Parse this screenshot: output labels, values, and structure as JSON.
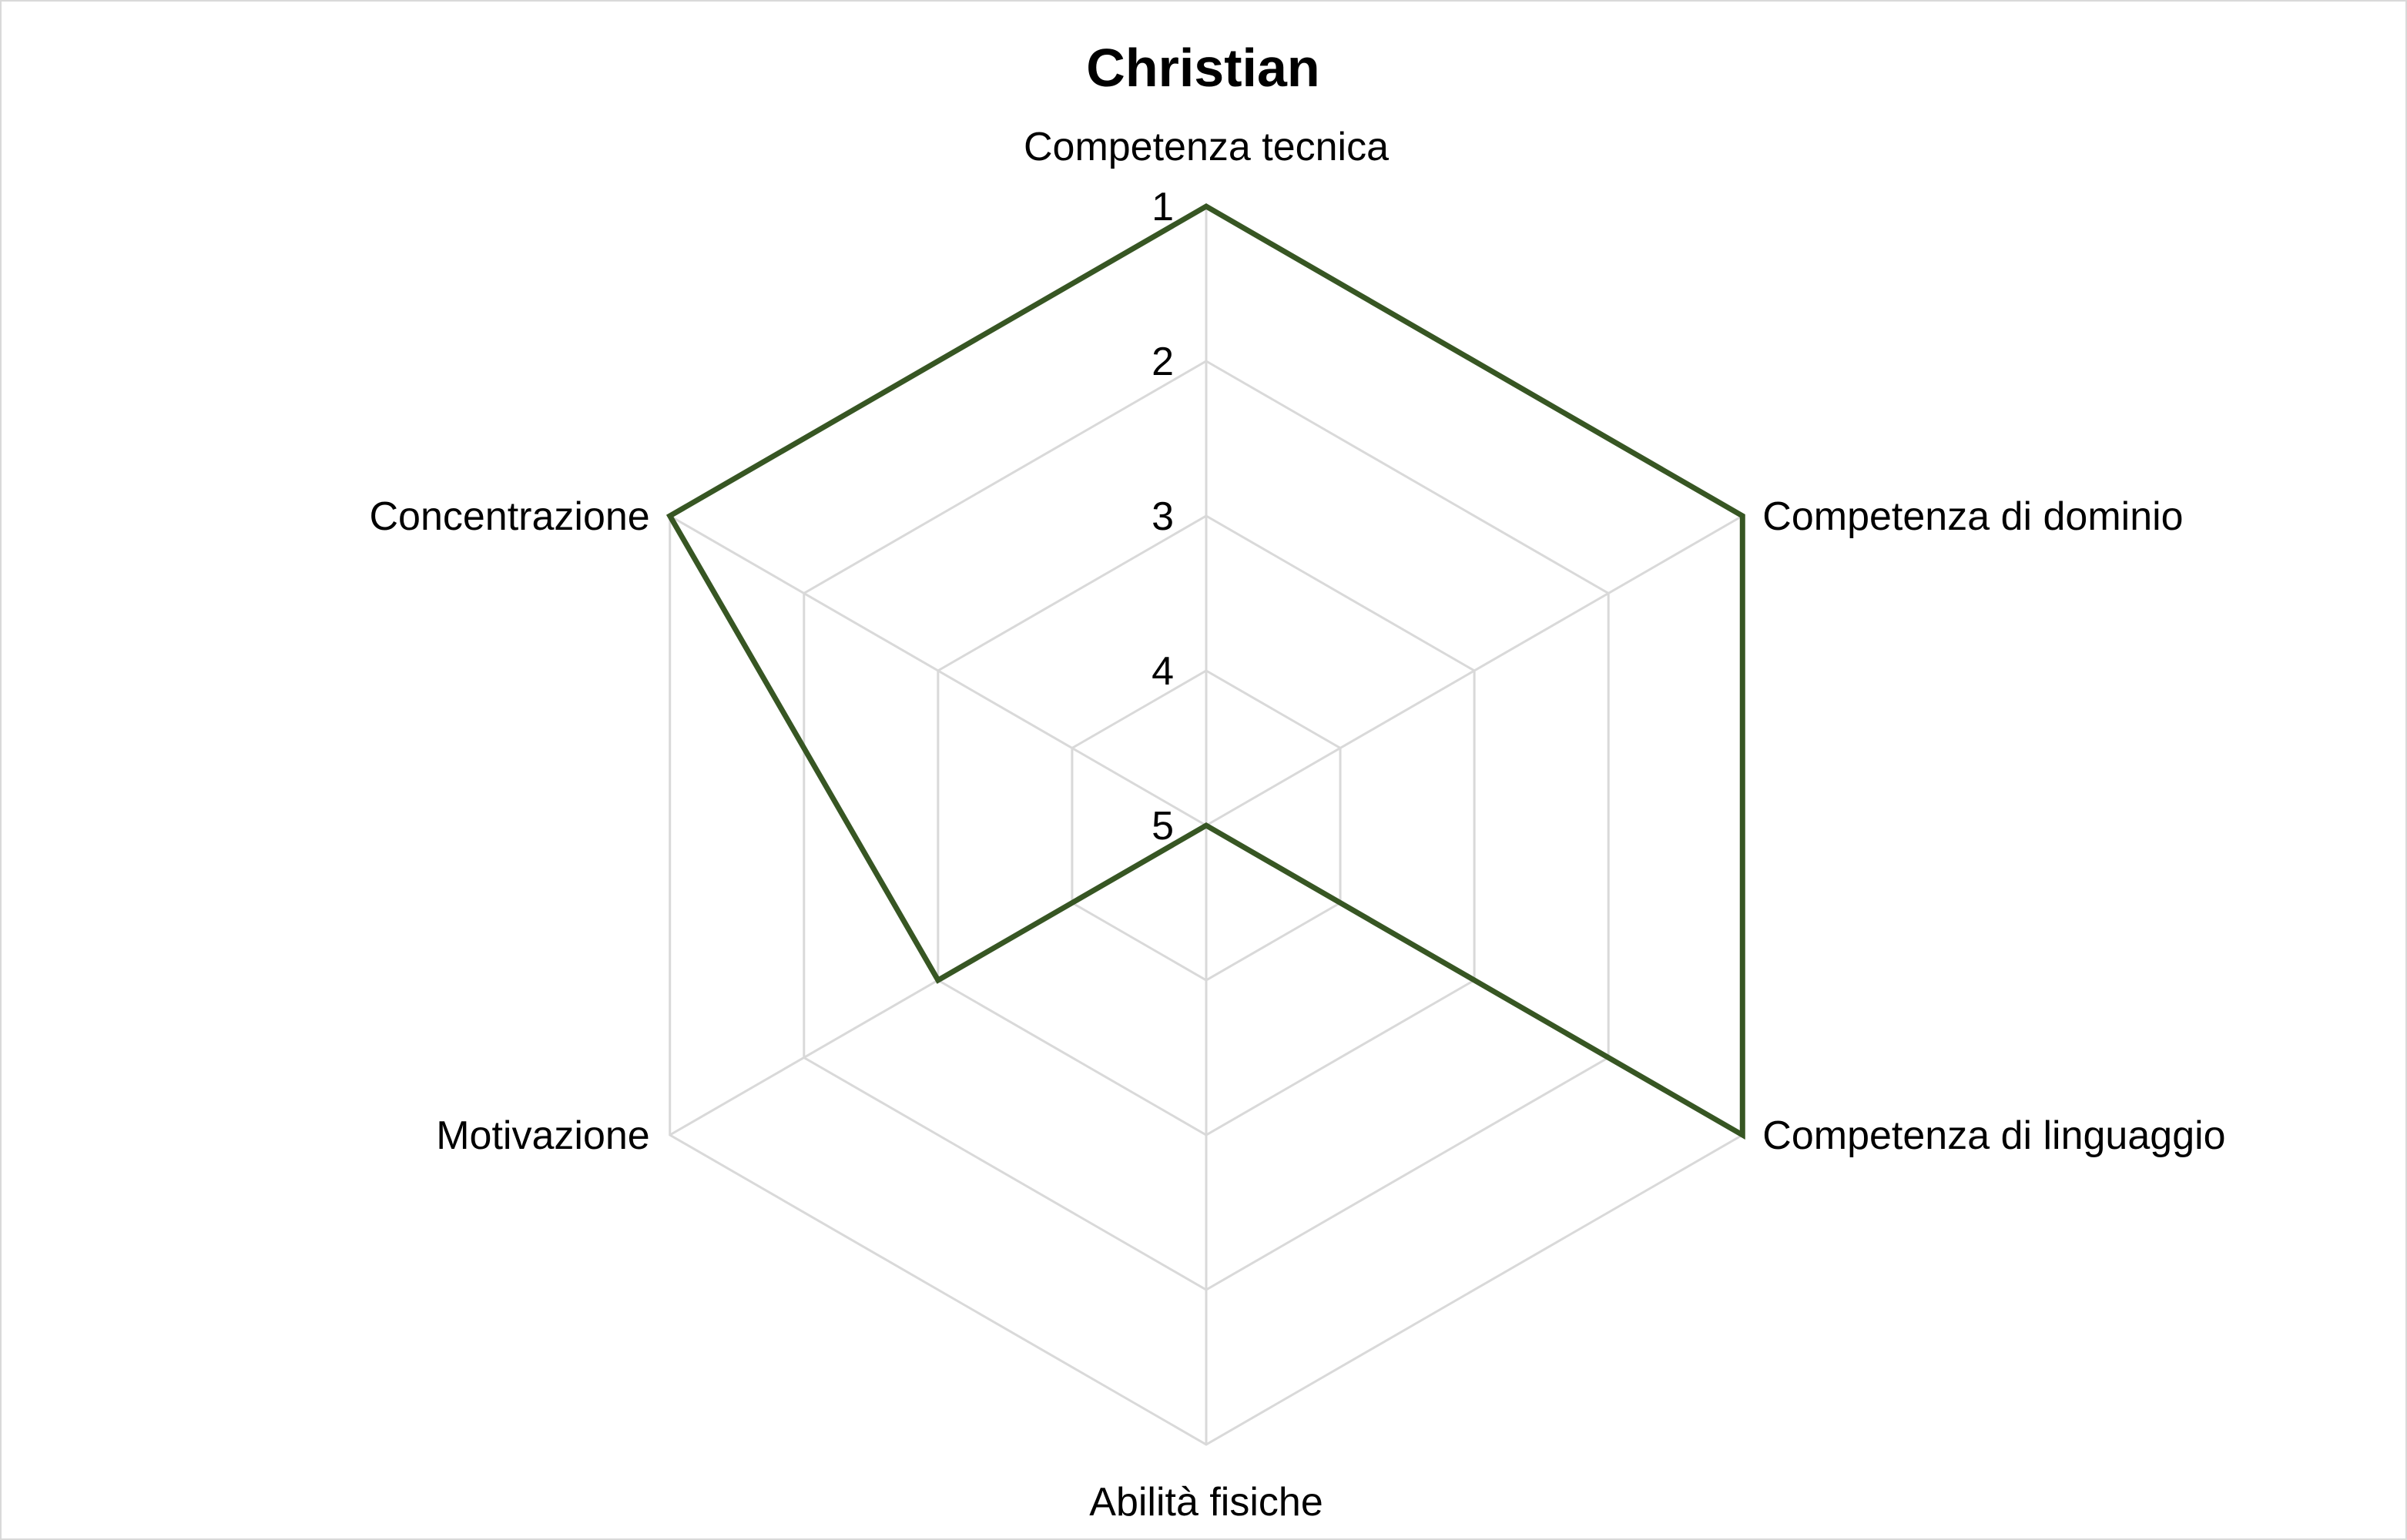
{
  "chart_data": {
    "type": "radar",
    "title": "Christian",
    "categories": [
      "Competenza tecnica",
      "Competenza di dominio",
      "Competenza di linguaggio",
      "Abilità fisiche",
      "Motivazione",
      "Concentrazione"
    ],
    "axis": {
      "min": 1,
      "max": 5,
      "reversed": true,
      "ticks": [
        "1",
        "2",
        "3",
        "4",
        "5"
      ]
    },
    "grid": true,
    "legend": "none",
    "series": [
      {
        "values": [
          1,
          1,
          1,
          5,
          3,
          1
        ],
        "color": "#375623"
      }
    ],
    "colors": {
      "series": "#375623",
      "grid": "#d9d9d9",
      "border": "#d9d9d9"
    }
  }
}
